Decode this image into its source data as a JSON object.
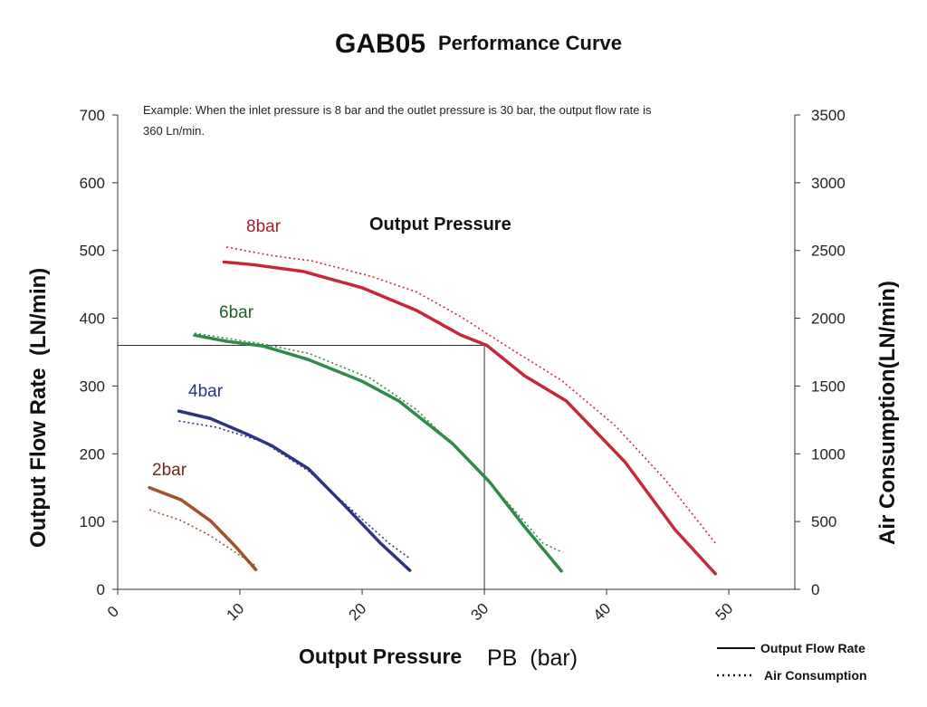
{
  "chart_data": {
    "type": "line",
    "title_main": "GAB05",
    "title_sub": "Performance Curve",
    "note_line1": "Example: When the inlet pressure is 8 bar and the outlet pressure is 30 bar, the output flow rate is",
    "note_line2": "360 Ln/min.",
    "group_label": "Output Pressure",
    "xlabel_main": "Output Pressure",
    "xlabel_unit": " PB  (bar)",
    "ylabel_left": "Output Flow Rate  (LN/min)",
    "ylabel_right": "Air Consumption(LN/min)",
    "xlim": [
      0,
      55.4
    ],
    "ylim_left": [
      0,
      700
    ],
    "ylim_right": [
      0,
      3500
    ],
    "x_ticks": [
      "0",
      "10",
      "20",
      "30",
      "40",
      "50"
    ],
    "y_ticks_left": [
      "0",
      "100",
      "200",
      "300",
      "400",
      "500",
      "600",
      "700"
    ],
    "y_ticks_right": [
      "0",
      "500",
      "1000",
      "1500",
      "2000",
      "2500",
      "3000",
      "3500"
    ],
    "grid": false,
    "legend": {
      "position": "bottom-right",
      "solid": "Output Flow Rate",
      "dotted": "Air Consumption"
    },
    "reference": {
      "x": 30,
      "y": 360
    },
    "series": [
      {
        "name": "8bar",
        "color": "#c8273a",
        "label_color": "#a3202c",
        "flow": [
          [
            8.7,
            483
          ],
          [
            11.1,
            479
          ],
          [
            15.2,
            469
          ],
          [
            20,
            445
          ],
          [
            24.4,
            412
          ],
          [
            28.1,
            375
          ],
          [
            30.2,
            360
          ],
          [
            33.3,
            315
          ],
          [
            36.7,
            278
          ],
          [
            41.5,
            188
          ],
          [
            45.6,
            88
          ],
          [
            48.9,
            23
          ]
        ],
        "air": [
          [
            8.9,
            2525
          ],
          [
            12.6,
            2463
          ],
          [
            15.9,
            2423
          ],
          [
            20.7,
            2310
          ],
          [
            24.4,
            2196
          ],
          [
            28.1,
            2010
          ],
          [
            31.9,
            1789
          ],
          [
            36.3,
            1542
          ],
          [
            40.7,
            1208
          ],
          [
            44.8,
            808
          ],
          [
            48.9,
            340
          ]
        ]
      },
      {
        "name": "6bar",
        "color": "#2e8b4a",
        "label_color": "#1f5e2c",
        "flow": [
          [
            6.3,
            375
          ],
          [
            8.9,
            366
          ],
          [
            11.9,
            359
          ],
          [
            15.6,
            339
          ],
          [
            20,
            307
          ],
          [
            23,
            278
          ],
          [
            27.4,
            215
          ],
          [
            30.4,
            159
          ],
          [
            33.3,
            92
          ],
          [
            36.3,
            27
          ]
        ],
        "air": [
          [
            6.3,
            1890
          ],
          [
            11.9,
            1809
          ],
          [
            15.6,
            1742
          ],
          [
            20.7,
            1556
          ],
          [
            24.4,
            1329
          ],
          [
            28.1,
            1008
          ],
          [
            31.9,
            641
          ],
          [
            34.8,
            340
          ],
          [
            36.4,
            273
          ]
        ]
      },
      {
        "name": "4bar",
        "color": "#2c3584",
        "label_color": "#2c3584",
        "flow": [
          [
            5.0,
            263
          ],
          [
            7.6,
            252
          ],
          [
            10.7,
            228
          ],
          [
            12.6,
            212
          ],
          [
            15.6,
            178
          ],
          [
            18.5,
            125
          ],
          [
            21.5,
            68
          ],
          [
            23.9,
            28
          ]
        ],
        "air": [
          [
            5.0,
            1242
          ],
          [
            8.1,
            1195
          ],
          [
            11.9,
            1088
          ],
          [
            15.6,
            874
          ],
          [
            19.3,
            574
          ],
          [
            22.2,
            340
          ],
          [
            23.9,
            227
          ]
        ]
      },
      {
        "name": "2bar",
        "color": "#a0522d",
        "label_color": "#6b2a1a",
        "flow": [
          [
            2.6,
            150
          ],
          [
            5.2,
            132
          ],
          [
            7.6,
            101
          ],
          [
            9.6,
            64
          ],
          [
            11.3,
            29
          ]
        ],
        "air": [
          [
            2.6,
            587
          ],
          [
            5.2,
            507
          ],
          [
            7.6,
            394
          ],
          [
            9.6,
            274
          ],
          [
            11.3,
            174
          ]
        ]
      }
    ]
  }
}
